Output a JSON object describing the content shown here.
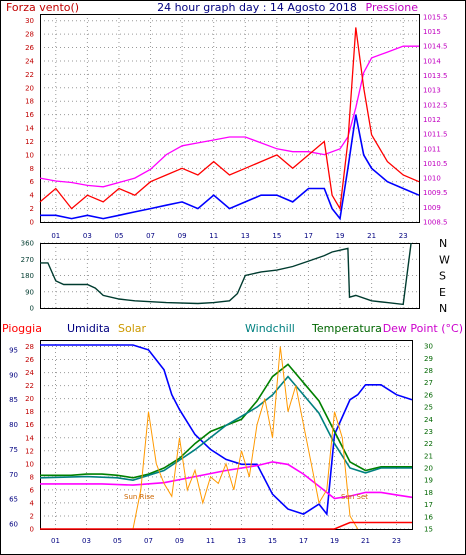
{
  "chart_data": [
    {
      "type": "line",
      "title": "24 hour graph day : 14 Agosto 2018",
      "left_label": "Forza vento()",
      "right_label": "Pressione",
      "x_ticks": [
        "01",
        "03",
        "05",
        "07",
        "09",
        "11",
        "13",
        "15",
        "17",
        "19",
        "21",
        "23"
      ],
      "y_left_ticks": [
        "0",
        "2",
        "4",
        "6",
        "8",
        "10",
        "12",
        "14",
        "16",
        "18",
        "20",
        "22",
        "24",
        "26",
        "28",
        "30"
      ],
      "y_left_range": [
        0,
        31
      ],
      "y_right_ticks": [
        "1008.5",
        "1009",
        "1009.5",
        "1010",
        "1010.5",
        "1011",
        "1011.5",
        "1012",
        "1012.5",
        "1013",
        "1013.5",
        "1014",
        "1014.5",
        "1015",
        "1015.5"
      ],
      "y_right_range": [
        1008.5,
        1015.6
      ],
      "colors": {
        "gust": "#ff0000",
        "wind": "#0000ff",
        "pressure": "#ff00ff",
        "left_axis": "#c00000",
        "right_axis": "#c000c0",
        "title": "#000080"
      },
      "series": [
        {
          "key": "pressure",
          "axis": "right",
          "points": [
            [
              0,
              1010.0
            ],
            [
              1,
              1009.9
            ],
            [
              2,
              1009.85
            ],
            [
              3,
              1009.75
            ],
            [
              4,
              1009.7
            ],
            [
              5,
              1009.85
            ],
            [
              6,
              1010.0
            ],
            [
              7,
              1010.3
            ],
            [
              8,
              1010.8
            ],
            [
              9,
              1011.1
            ],
            [
              10,
              1011.2
            ],
            [
              11,
              1011.3
            ],
            [
              12,
              1011.4
            ],
            [
              13,
              1011.4
            ],
            [
              14,
              1011.2
            ],
            [
              15,
              1011.0
            ],
            [
              16,
              1010.9
            ],
            [
              17,
              1010.9
            ],
            [
              18,
              1010.8
            ],
            [
              19,
              1011.0
            ],
            [
              19.5,
              1011.4
            ],
            [
              20,
              1012.4
            ],
            [
              20.5,
              1013.6
            ],
            [
              21,
              1014.1
            ],
            [
              22,
              1014.3
            ],
            [
              23,
              1014.5
            ],
            [
              24,
              1014.5
            ]
          ]
        },
        {
          "key": "wind",
          "axis": "left",
          "points": [
            [
              0,
              1
            ],
            [
              1,
              1
            ],
            [
              2,
              0.5
            ],
            [
              3,
              1
            ],
            [
              4,
              0.5
            ],
            [
              5,
              1
            ],
            [
              6,
              1.5
            ],
            [
              7,
              2
            ],
            [
              8,
              2.5
            ],
            [
              9,
              3
            ],
            [
              10,
              2
            ],
            [
              11,
              4
            ],
            [
              12,
              2
            ],
            [
              13,
              3
            ],
            [
              14,
              4
            ],
            [
              15,
              4
            ],
            [
              16,
              3
            ],
            [
              17,
              5
            ],
            [
              18,
              5
            ],
            [
              18.5,
              2
            ],
            [
              19,
              0.5
            ],
            [
              19.5,
              8
            ],
            [
              20,
              16
            ],
            [
              20.5,
              10
            ],
            [
              21,
              8
            ],
            [
              22,
              6
            ],
            [
              23,
              5
            ],
            [
              24,
              4
            ]
          ]
        },
        {
          "key": "gust",
          "axis": "left",
          "points": [
            [
              0,
              3
            ],
            [
              1,
              5
            ],
            [
              2,
              2
            ],
            [
              3,
              4
            ],
            [
              4,
              3
            ],
            [
              5,
              5
            ],
            [
              6,
              4
            ],
            [
              7,
              6
            ],
            [
              8,
              7
            ],
            [
              9,
              8
            ],
            [
              10,
              7
            ],
            [
              11,
              9
            ],
            [
              12,
              7
            ],
            [
              13,
              8
            ],
            [
              14,
              9
            ],
            [
              15,
              10
            ],
            [
              16,
              8
            ],
            [
              17,
              10
            ],
            [
              18,
              12
            ],
            [
              18.5,
              4
            ],
            [
              19,
              2
            ],
            [
              19.5,
              12
            ],
            [
              20,
              29
            ],
            [
              20.5,
              20
            ],
            [
              21,
              13
            ],
            [
              22,
              9
            ],
            [
              23,
              7
            ],
            [
              24,
              6
            ]
          ]
        }
      ]
    },
    {
      "type": "line",
      "title": "",
      "right_labels": [
        "N",
        "W",
        "S",
        "E",
        "N"
      ],
      "y_ticks": [
        "0",
        "90",
        "180",
        "270",
        "360"
      ],
      "y_range": [
        0,
        360
      ],
      "x_ticks": [
        "01",
        "03",
        "05",
        "07",
        "09",
        "11",
        "13",
        "15",
        "17",
        "19",
        "21",
        "23"
      ],
      "colors": {
        "direction": "#003b2f"
      },
      "series": [
        {
          "key": "direction",
          "points": [
            [
              0,
              250
            ],
            [
              0.5,
              250
            ],
            [
              1,
              150
            ],
            [
              1.5,
              130
            ],
            [
              3,
              130
            ],
            [
              3.5,
              110
            ],
            [
              4,
              70
            ],
            [
              5,
              50
            ],
            [
              6,
              40
            ],
            [
              7,
              35
            ],
            [
              8,
              30
            ],
            [
              10,
              25
            ],
            [
              11,
              30
            ],
            [
              12,
              40
            ],
            [
              12.5,
              80
            ],
            [
              13,
              180
            ],
            [
              14,
              200
            ],
            [
              15,
              210
            ],
            [
              16,
              230
            ],
            [
              17,
              260
            ],
            [
              18,
              290
            ],
            [
              18.5,
              310
            ],
            [
              19,
              320
            ],
            [
              19.5,
              330
            ],
            [
              19.6,
              60
            ],
            [
              20,
              70
            ],
            [
              21,
              40
            ],
            [
              22,
              30
            ],
            [
              23,
              20
            ],
            [
              23.5,
              360
            ]
          ]
        }
      ]
    },
    {
      "type": "line",
      "title": "",
      "labels": [
        "Pioggia",
        "Umidita",
        "Solar",
        "Windchill",
        "Temperatura",
        "Dew Point (°C)"
      ],
      "left_axis_ticks": [
        "60",
        "65",
        "70",
        "75",
        "80",
        "85",
        "90",
        "95"
      ],
      "rain_axis_ticks": [
        "0",
        "2",
        "4",
        "6",
        "8",
        "10",
        "12",
        "14",
        "16",
        "18",
        "20",
        "22",
        "24",
        "26",
        "28"
      ],
      "right_axis_ticks": [
        "15",
        "16",
        "17",
        "18",
        "19",
        "20",
        "21",
        "22",
        "23",
        "24",
        "25",
        "26",
        "27",
        "28",
        "29",
        "30"
      ],
      "humidity_range": [
        59,
        97
      ],
      "temp_range": [
        15,
        30.5
      ],
      "annotations": [
        "Sun Rise",
        "Sun Set"
      ],
      "x_ticks": [
        "01",
        "03",
        "05",
        "07",
        "09",
        "11",
        "13",
        "15",
        "17",
        "19",
        "21",
        "23"
      ],
      "colors": {
        "rain": "#ff0000",
        "humidity": "#0000ff",
        "solar": "#ff9900",
        "windchill": "#008080",
        "temperature": "#008000",
        "dew": "#ff00ff",
        "pioggia_label": "#ff0000",
        "umidita_label": "#000080",
        "solar_label": "#cc9900",
        "windchill_label": "#008080",
        "temperatura_label": "#006600",
        "dew_label": "#cc00cc"
      },
      "series": [
        {
          "key": "humidity",
          "points": [
            [
              0,
              96
            ],
            [
              5,
              96
            ],
            [
              6,
              96
            ],
            [
              7,
              95
            ],
            [
              8,
              91
            ],
            [
              8.5,
              86
            ],
            [
              9,
              83
            ],
            [
              10,
              78
            ],
            [
              11,
              75
            ],
            [
              12,
              73
            ],
            [
              13,
              72
            ],
            [
              14,
              72
            ],
            [
              15,
              66
            ],
            [
              16,
              63
            ],
            [
              17,
              62
            ],
            [
              18,
              64
            ],
            [
              18.5,
              62
            ],
            [
              19,
              78
            ],
            [
              20,
              85
            ],
            [
              20.5,
              86
            ],
            [
              21,
              88
            ],
            [
              22,
              88
            ],
            [
              23,
              86
            ],
            [
              24,
              85
            ]
          ]
        },
        {
          "key": "temperature",
          "points": [
            [
              0,
              19.4
            ],
            [
              1,
              19.4
            ],
            [
              2,
              19.4
            ],
            [
              3,
              19.5
            ],
            [
              4,
              19.5
            ],
            [
              5,
              19.4
            ],
            [
              6,
              19.2
            ],
            [
              7,
              19.5
            ],
            [
              8,
              20.0
            ],
            [
              9,
              20.8
            ],
            [
              10,
              22.0
            ],
            [
              11,
              23.0
            ],
            [
              12,
              23.5
            ],
            [
              13,
              24.0
            ],
            [
              14,
              25.5
            ],
            [
              15,
              27.5
            ],
            [
              16,
              28.5
            ],
            [
              17,
              27.0
            ],
            [
              18,
              25.5
            ],
            [
              19,
              23.0
            ],
            [
              20,
              20.5
            ],
            [
              21,
              19.8
            ],
            [
              22,
              20.1
            ],
            [
              23,
              20.1
            ],
            [
              24,
              20.1
            ]
          ]
        },
        {
          "key": "dew",
          "points": [
            [
              0,
              18.7
            ],
            [
              2,
              18.7
            ],
            [
              4,
              18.7
            ],
            [
              6,
              18.6
            ],
            [
              8,
              18.8
            ],
            [
              10,
              19.3
            ],
            [
              12,
              19.8
            ],
            [
              14,
              20.2
            ],
            [
              15,
              20.5
            ],
            [
              16,
              20.3
            ],
            [
              17,
              19.5
            ],
            [
              18,
              18.5
            ],
            [
              19,
              17.5
            ],
            [
              20,
              17.7
            ],
            [
              21,
              18.0
            ],
            [
              22,
              18.0
            ],
            [
              23,
              17.8
            ],
            [
              24,
              17.6
            ]
          ]
        },
        {
          "key": "windchill",
          "points": [
            [
              0,
              19.2
            ],
            [
              3,
              19.3
            ],
            [
              5,
              19.2
            ],
            [
              6,
              19.0
            ],
            [
              8,
              19.8
            ],
            [
              10,
              21.5
            ],
            [
              12,
              23.5
            ],
            [
              14,
              25.0
            ],
            [
              15,
              26.0
            ],
            [
              16,
              27.5
            ],
            [
              17,
              26.0
            ],
            [
              18,
              24.5
            ],
            [
              19,
              22.0
            ],
            [
              20,
              20.0
            ],
            [
              21,
              19.6
            ],
            [
              22,
              20.0
            ],
            [
              24,
              20.0
            ]
          ]
        },
        {
          "key": "solar",
          "axis": "rain",
          "points": [
            [
              6,
              0
            ],
            [
              6.5,
              6
            ],
            [
              7,
              18
            ],
            [
              7.5,
              10
            ],
            [
              8,
              7
            ],
            [
              8.5,
              5
            ],
            [
              9,
              14
            ],
            [
              9.5,
              6
            ],
            [
              10,
              9
            ],
            [
              10.5,
              4
            ],
            [
              11,
              8
            ],
            [
              11.5,
              7
            ],
            [
              12,
              10
            ],
            [
              12.5,
              6
            ],
            [
              13,
              12
            ],
            [
              13.5,
              8
            ],
            [
              14,
              16
            ],
            [
              14.5,
              20
            ],
            [
              15,
              14
            ],
            [
              15.5,
              28
            ],
            [
              16,
              18
            ],
            [
              16.5,
              22
            ],
            [
              17,
              16
            ],
            [
              17.5,
              10
            ],
            [
              18,
              4
            ],
            [
              18.5,
              6
            ],
            [
              19,
              18
            ],
            [
              19.5,
              14
            ],
            [
              20,
              2
            ],
            [
              20.5,
              0
            ]
          ]
        },
        {
          "key": "rain",
          "axis": "rain",
          "points": [
            [
              0,
              0
            ],
            [
              19,
              0
            ],
            [
              19.5,
              0.5
            ],
            [
              20,
              1
            ],
            [
              21,
              1
            ],
            [
              24,
              1
            ]
          ]
        }
      ]
    }
  ]
}
